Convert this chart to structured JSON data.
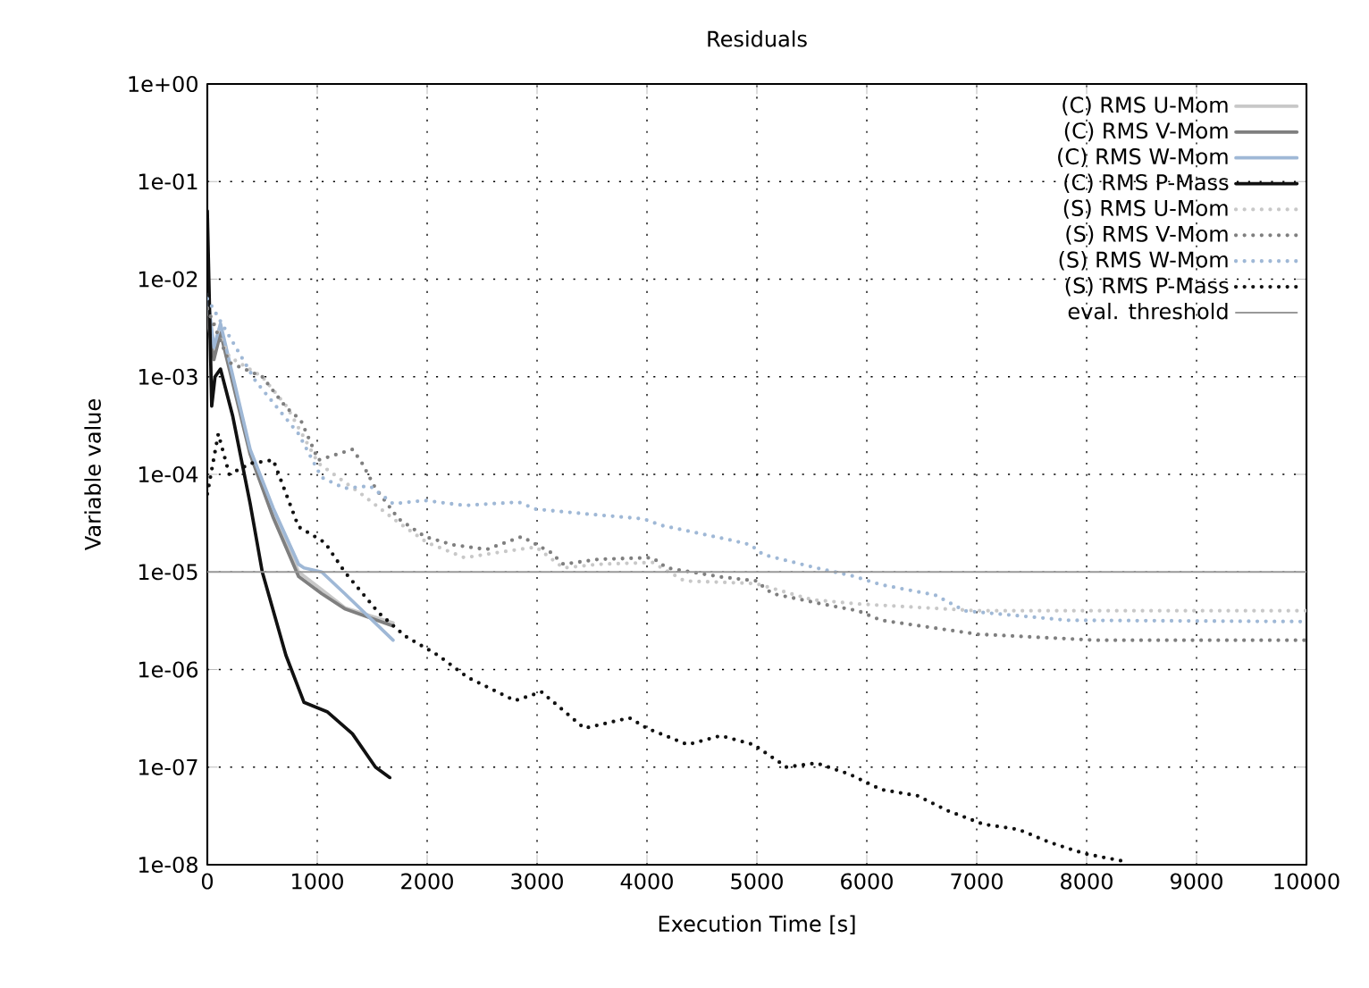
{
  "chart_data": {
    "type": "line",
    "title": "Residuals",
    "xlabel": "Execution Time [s]",
    "ylabel": "Variable value",
    "log": "y",
    "grid": true,
    "legend": "top right",
    "marker": "none",
    "xlim": [
      0,
      10000
    ],
    "xticks": [
      0,
      1000,
      2000,
      3000,
      4000,
      5000,
      6000,
      7000,
      8000,
      9000,
      10000
    ],
    "ylim": [
      1e-08,
      1
    ],
    "yticks": [
      {
        "value": 1,
        "label": "1e+00"
      },
      {
        "value": 0.1,
        "label": "1e-01"
      },
      {
        "value": 0.01,
        "label": "1e-02"
      },
      {
        "value": 0.001,
        "label": "1e-03"
      },
      {
        "value": 0.0001,
        "label": "1e-04"
      },
      {
        "value": 1e-05,
        "label": "1e-05"
      },
      {
        "value": 1e-06,
        "label": "1e-06"
      },
      {
        "value": 1e-07,
        "label": "1e-07"
      },
      {
        "value": 1e-08,
        "label": "1e-08"
      }
    ],
    "series": [
      {
        "name": "(C) RMS U-Mom",
        "color": "#c8c8c8",
        "line_style": "solid",
        "x": [
          0,
          60,
          120,
          390,
          600,
          830,
          1040,
          1250,
          1690
        ],
        "values": [
          0.0056,
          0.002,
          0.0032,
          0.00017,
          4e-05,
          1e-05,
          6.6e-06,
          4.3e-06,
          3e-06
        ]
      },
      {
        "name": "(C) RMS V-Mom",
        "color": "#7f7f7f",
        "line_style": "solid",
        "x": [
          0,
          60,
          120,
          390,
          600,
          830,
          1040,
          1250,
          1690
        ],
        "values": [
          0.004,
          0.0015,
          0.0028,
          0.00016,
          3.6e-05,
          9e-06,
          6e-06,
          4.2e-06,
          2.8e-06
        ]
      },
      {
        "name": "(C) RMS W-Mom",
        "color": "#9fb8d6",
        "line_style": "solid",
        "x": [
          0,
          60,
          120,
          390,
          600,
          830,
          880,
          1040,
          1250,
          1690
        ],
        "values": [
          0.007,
          0.002,
          0.0035,
          0.00018,
          4.5e-05,
          1.2e-05,
          1.1e-05,
          1e-05,
          6e-06,
          2e-06
        ]
      },
      {
        "name": "(C) RMS P-Mass",
        "color": "#111111",
        "line_style": "solid",
        "x": [
          0,
          40,
          70,
          120,
          230,
          390,
          500,
          715,
          880,
          1090,
          1320,
          1530,
          1660
        ],
        "values": [
          0.05,
          0.0005,
          0.001,
          0.0012,
          0.0004,
          5e-05,
          1e-05,
          1.4e-06,
          4.6e-07,
          3.7e-07,
          2.2e-07,
          1e-07,
          7.8e-08
        ]
      },
      {
        "name": "(S) RMS U-Mom",
        "color": "#c8c8c8",
        "line_style": "dotted",
        "x": [
          0,
          200,
          500,
          720,
          1010,
          1400,
          1740,
          2000,
          2340,
          2670,
          2990,
          3240,
          3560,
          4050,
          4340,
          4990,
          5500,
          5920,
          7010,
          10000
        ],
        "values": [
          0.005,
          0.0016,
          0.001,
          0.0005,
          0.00013,
          6.3e-05,
          3.2e-05,
          2e-05,
          1.4e-05,
          1.6e-05,
          1.8e-05,
          1.1e-05,
          1.2e-05,
          1.25e-05,
          8.1e-06,
          7.6e-06,
          5.2e-06,
          4.7e-06,
          4e-06,
          4e-06
        ]
      },
      {
        "name": "(S) RMS V-Mom",
        "color": "#7f7f7f",
        "line_style": "dotted",
        "x": [
          0,
          200,
          500,
          720,
          850,
          1010,
          1320,
          1400,
          1530,
          1740,
          1980,
          2230,
          2540,
          2860,
          3120,
          3240,
          3560,
          4050,
          4180,
          4670,
          4990,
          5140,
          5590,
          5920,
          6130,
          6680,
          7010,
          8080,
          10000
        ],
        "values": [
          0.005,
          0.0014,
          0.001,
          0.00048,
          0.00036,
          0.00014,
          0.00018,
          0.000135,
          7.2e-05,
          3.5e-05,
          2.3e-05,
          1.9e-05,
          1.7e-05,
          2.3e-05,
          1.6e-05,
          1.2e-05,
          1.35e-05,
          1.4e-05,
          1.1e-05,
          8.9e-06,
          8.1e-06,
          6e-06,
          4.7e-06,
          4e-06,
          3.2e-06,
          2.6e-06,
          2.3e-06,
          2e-06,
          2e-06
        ]
      },
      {
        "name": "(S) RMS W-Mom",
        "color": "#9fb8d6",
        "line_style": "dotted",
        "x": [
          0,
          440,
          830,
          1040,
          1250,
          1480,
          1690,
          1980,
          2340,
          2830,
          2990,
          3480,
          3970,
          4130,
          4780,
          4940,
          5060,
          5540,
          5870,
          6130,
          6620,
          6890,
          7820,
          10000
        ],
        "values": [
          0.0063,
          0.0009,
          0.00026,
          9.3e-05,
          7.2e-05,
          7.6e-05,
          5e-05,
          5.4e-05,
          4.8e-05,
          5.2e-05,
          4.4e-05,
          3.9e-05,
          3.5e-05,
          3e-05,
          2.1e-05,
          1.9e-05,
          1.5e-05,
          1.1e-05,
          9.1e-06,
          7.4e-06,
          5.8e-06,
          4e-06,
          3.2e-06,
          3.1e-06
        ]
      },
      {
        "name": "(S) RMS P-Mass",
        "color": "#111111",
        "line_style": "dotted",
        "x": [
          0,
          100,
          200,
          400,
          600,
          660,
          830,
          1070,
          1250,
          1560,
          1800,
          2100,
          2370,
          2800,
          3040,
          3430,
          3840,
          4000,
          4370,
          4670,
          4970,
          5270,
          5540,
          5840,
          6130,
          6460,
          6730,
          7060,
          7380,
          7660,
          7980,
          8310
        ],
        "values": [
          6.3e-05,
          0.00026,
          0.0001,
          0.00013,
          0.00014,
          9.3e-05,
          2.9e-05,
          2e-05,
          1e-05,
          3.8e-06,
          2.2e-06,
          1.4e-06,
          8.3e-07,
          4.8e-07,
          5.9e-07,
          2.5e-07,
          3.2e-07,
          2.5e-07,
          1.7e-07,
          2.1e-07,
          1.7e-07,
          1e-07,
          1.1e-07,
          8.5e-08,
          5.9e-08,
          5.1e-08,
          3.6e-08,
          2.6e-08,
          2.3e-08,
          1.7e-08,
          1.3e-08,
          1.1e-08
        ]
      }
    ],
    "ref_lines": [
      {
        "axis": "y",
        "value": 1e-05,
        "label": "eval. threshold",
        "color": "#999999",
        "line_style": "solid"
      }
    ]
  }
}
